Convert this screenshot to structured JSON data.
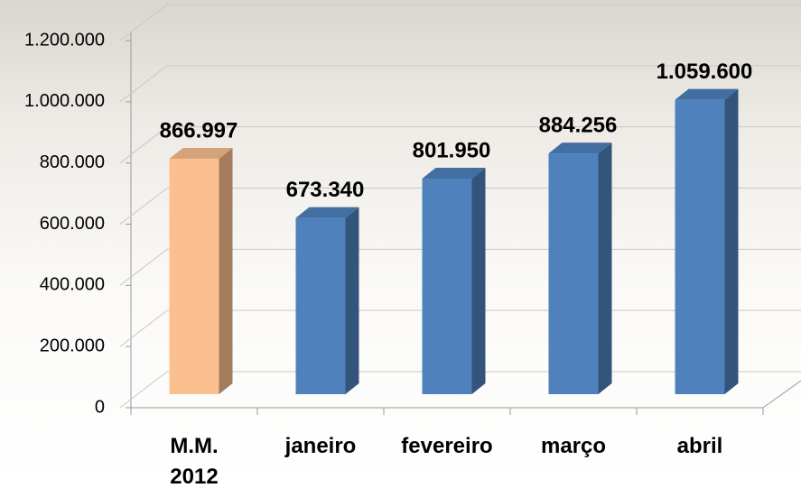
{
  "chart_data": {
    "type": "bar3d",
    "categories": [
      "M.M. 2012",
      "janeiro",
      "fevereiro",
      "março",
      "abril"
    ],
    "values": [
      866997,
      673340,
      801950,
      884256,
      1059600
    ],
    "value_labels": [
      "866.997",
      "673.340",
      "801.950",
      "884.256",
      "1.059.600"
    ],
    "colors": [
      "#fac090",
      "#4f81bd",
      "#4f81bd",
      "#4f81bd",
      "#4f81bd"
    ],
    "ylim": [
      0,
      1200000
    ],
    "yticks": [
      0,
      {
        "value": 200000,
        "label": "200.000"
      },
      {
        "value": 400000,
        "label": "400.000"
      },
      {
        "value": 600000,
        "label": "600.000"
      },
      {
        "value": 800000,
        "label": "800.000"
      },
      {
        "value": 1000000,
        "label": "1.000.000"
      },
      {
        "value": 1200000,
        "label": "1.200.000"
      }
    ],
    "grid": true
  }
}
